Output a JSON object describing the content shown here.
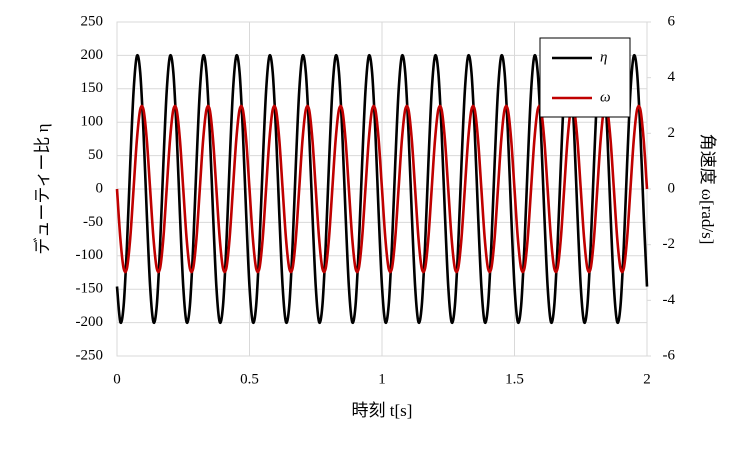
{
  "chart_data": {
    "type": "line",
    "x_label": "時刻 t[s]",
    "y_label": "デューティー比 η",
    "y2_label": "角速度 ω[rad/s]",
    "x": [
      0,
      0.0125,
      0.025,
      0.0375,
      0.05,
      0.0625,
      0.075,
      0.0875,
      0.1,
      0.1125,
      0.125,
      0.1375,
      0.15,
      0.1625,
      0.175,
      0.1875,
      0.2,
      0.2125,
      0.225,
      0.2375,
      0.25,
      0.2625,
      0.275,
      0.2875,
      0.3,
      0.3125,
      0.325,
      0.3375,
      0.35,
      0.3625,
      0.375,
      0.3875,
      0.4,
      0.4125,
      0.425,
      0.4375,
      0.45,
      0.4625,
      0.475,
      0.4875,
      0.5,
      0.5125,
      0.525,
      0.5375,
      0.55,
      0.5625,
      0.575,
      0.5875,
      0.6,
      0.6125,
      0.625,
      0.6375,
      0.65,
      0.6625,
      0.675,
      0.6875,
      0.7,
      0.7125,
      0.725,
      0.7375,
      0.75,
      0.7625,
      0.775,
      0.7875,
      0.8,
      0.8125,
      0.825,
      0.8375,
      0.85,
      0.8625,
      0.875,
      0.8875,
      0.9,
      0.9125,
      0.925,
      0.9375,
      0.95,
      0.9625,
      0.975,
      0.9875,
      1,
      1.0125,
      1.025,
      1.0375,
      1.05,
      1.0625,
      1.075,
      1.0875,
      1.1,
      1.1125,
      1.125,
      1.1375,
      1.15,
      1.1625,
      1.175,
      1.1875,
      1.2,
      1.2125,
      1.225,
      1.2375,
      1.25,
      1.2625,
      1.275,
      1.2875,
      1.3,
      1.3125,
      1.325,
      1.3375,
      1.35,
      1.3625,
      1.375,
      1.3875,
      1.4,
      1.4125,
      1.425,
      1.4375,
      1.45,
      1.4625,
      1.475,
      1.4875,
      1.5,
      1.5125,
      1.525,
      1.5375,
      1.55,
      1.5625,
      1.575,
      1.5875,
      1.6,
      1.6125,
      1.625,
      1.6375,
      1.65,
      1.6625,
      1.675,
      1.6875,
      1.7,
      1.7125,
      1.725,
      1.7375,
      1.75,
      1.7625,
      1.775,
      1.7875,
      1.8,
      1.8125,
      1.825,
      1.8375,
      1.85,
      1.8625,
      1.875,
      1.8875,
      1.9,
      1.9125,
      1.925,
      1.9375,
      1.95,
      1.9625,
      1.975,
      1.9875,
      2
    ],
    "series": [
      {
        "name": "η",
        "color": "#000000",
        "values": [
          -146,
          -199,
          -175,
          -85,
          38,
          146,
          199,
          175,
          85,
          -38,
          -146,
          -199,
          -175,
          -85,
          38,
          146,
          199,
          175,
          85,
          -38,
          -146,
          -199,
          -175,
          -85,
          38,
          146,
          199,
          175,
          85,
          -38,
          -146,
          -199,
          -175,
          -85,
          38,
          146,
          199,
          175,
          85,
          -38,
          -146,
          -199,
          -175,
          -85,
          38,
          146,
          199,
          175,
          85,
          -38,
          -146,
          -199,
          -175,
          -85,
          38,
          146,
          199,
          175,
          85,
          -38,
          -146,
          -199,
          -175,
          -85,
          38,
          146,
          199,
          175,
          85,
          -38,
          -146,
          -199,
          -175,
          -85,
          38,
          146,
          199,
          175,
          85,
          -38,
          -146,
          -199,
          -175,
          -85,
          38,
          146,
          199,
          175,
          85,
          -38,
          -146,
          -199,
          -175,
          -85,
          38,
          146,
          199,
          175,
          85,
          -38,
          -146,
          -199,
          -175,
          -85,
          38,
          146,
          199,
          175,
          85,
          -38,
          -146,
          -199,
          -175,
          -85,
          38,
          146,
          199,
          175,
          85,
          -38,
          -146,
          -199,
          -175,
          -85,
          38,
          146,
          199,
          175,
          85,
          -38,
          -146,
          -199,
          -175,
          -85,
          38,
          146,
          199,
          175,
          85,
          -38,
          -146,
          -199,
          -175,
          -85,
          38,
          146,
          199,
          175,
          85,
          -38,
          -146,
          -199,
          -175,
          -85,
          38,
          146,
          199,
          175,
          85,
          -38,
          -146
        ]
      },
      {
        "name": "ω",
        "color": "#c00000",
        "axis": "y2",
        "values": [
          0,
          -1.76,
          -2.85,
          -2.85,
          -1.76,
          0,
          1.76,
          2.85,
          2.85,
          1.76,
          0,
          -1.76,
          -2.85,
          -2.85,
          -1.76,
          0,
          1.76,
          2.85,
          2.85,
          1.76,
          0,
          -1.76,
          -2.85,
          -2.85,
          -1.76,
          0,
          1.76,
          2.85,
          2.85,
          1.76,
          0,
          -1.76,
          -2.85,
          -2.85,
          -1.76,
          0,
          1.76,
          2.85,
          2.85,
          1.76,
          0,
          -1.76,
          -2.85,
          -2.85,
          -1.76,
          0,
          1.76,
          2.85,
          2.85,
          1.76,
          0,
          -1.76,
          -2.85,
          -2.85,
          -1.76,
          0,
          1.76,
          2.85,
          2.85,
          1.76,
          0,
          -1.76,
          -2.85,
          -2.85,
          -1.76,
          0,
          1.76,
          2.85,
          2.85,
          1.76,
          0,
          -1.76,
          -2.85,
          -2.85,
          -1.76,
          0,
          1.76,
          2.85,
          2.85,
          1.76,
          0,
          -1.76,
          -2.85,
          -2.85,
          -1.76,
          0,
          1.76,
          2.85,
          2.85,
          1.76,
          0,
          -1.76,
          -2.85,
          -2.85,
          -1.76,
          0,
          1.76,
          2.85,
          2.85,
          1.76,
          0,
          -1.76,
          -2.85,
          -2.85,
          -1.76,
          0,
          1.76,
          2.85,
          2.85,
          1.76,
          0,
          -1.76,
          -2.85,
          -2.85,
          -1.76,
          0,
          1.76,
          2.85,
          2.85,
          1.76,
          0,
          -1.76,
          -2.85,
          -2.85,
          -1.76,
          0,
          1.76,
          2.85,
          2.85,
          1.76,
          0,
          -1.76,
          -2.85,
          -2.85,
          -1.76,
          0,
          1.76,
          2.85,
          2.85,
          1.76,
          0,
          -1.76,
          -2.85,
          -2.85,
          -1.76,
          0,
          1.76,
          2.85,
          2.85,
          1.76,
          0,
          -1.76,
          -2.85,
          -2.85,
          -1.76,
          0,
          1.76,
          2.85,
          2.85,
          1.76,
          0
        ]
      }
    ],
    "xlim": [
      0,
      2
    ],
    "xticks": [
      0,
      0.5,
      1,
      1.5,
      2
    ],
    "ylim": [
      -250,
      250
    ],
    "yticks": [
      -250,
      -200,
      -150,
      -100,
      -50,
      0,
      50,
      100,
      150,
      200,
      250
    ],
    "y2lim": [
      -6,
      6
    ],
    "y2ticks": [
      -6,
      -4,
      -2,
      0,
      2,
      4,
      6
    ],
    "grid": true,
    "legend": "top-right"
  }
}
